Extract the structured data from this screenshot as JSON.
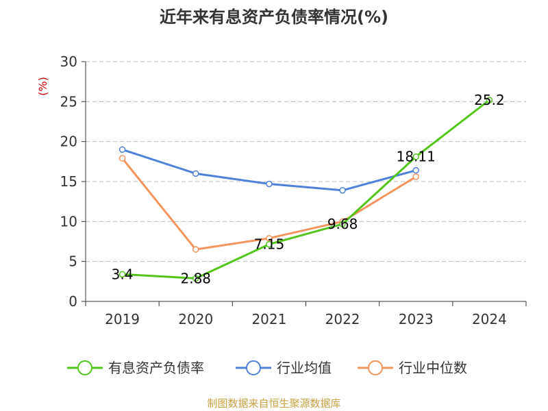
{
  "chart_data": {
    "type": "line",
    "title": "近年来有息资产负债率情况(%)",
    "ylabel": "(%)",
    "xlabel": "",
    "categories": [
      "2019",
      "2020",
      "2021",
      "2022",
      "2023",
      "2024"
    ],
    "ylim": [
      0,
      30
    ],
    "yticks": [
      0,
      5,
      10,
      15,
      20,
      25,
      30
    ],
    "grid": true,
    "legend_position": "bottom",
    "series": [
      {
        "name": "有息资产负债率",
        "color": "#52c41a",
        "values": [
          3.4,
          2.88,
          7.15,
          9.68,
          18.11,
          25.2
        ],
        "labels": [
          "3.4",
          "2.88",
          "7.15",
          "9.68",
          "18.11",
          "25.2"
        ]
      },
      {
        "name": "行业均值",
        "color": "#4f81db",
        "values": [
          19.0,
          16.0,
          14.7,
          13.9,
          16.4,
          null
        ]
      },
      {
        "name": "行业中位数",
        "color": "#f4935c",
        "values": [
          17.9,
          6.5,
          7.9,
          10.0,
          15.6,
          null
        ]
      }
    ]
  },
  "source": "制图数据来自恒生聚源数据库"
}
